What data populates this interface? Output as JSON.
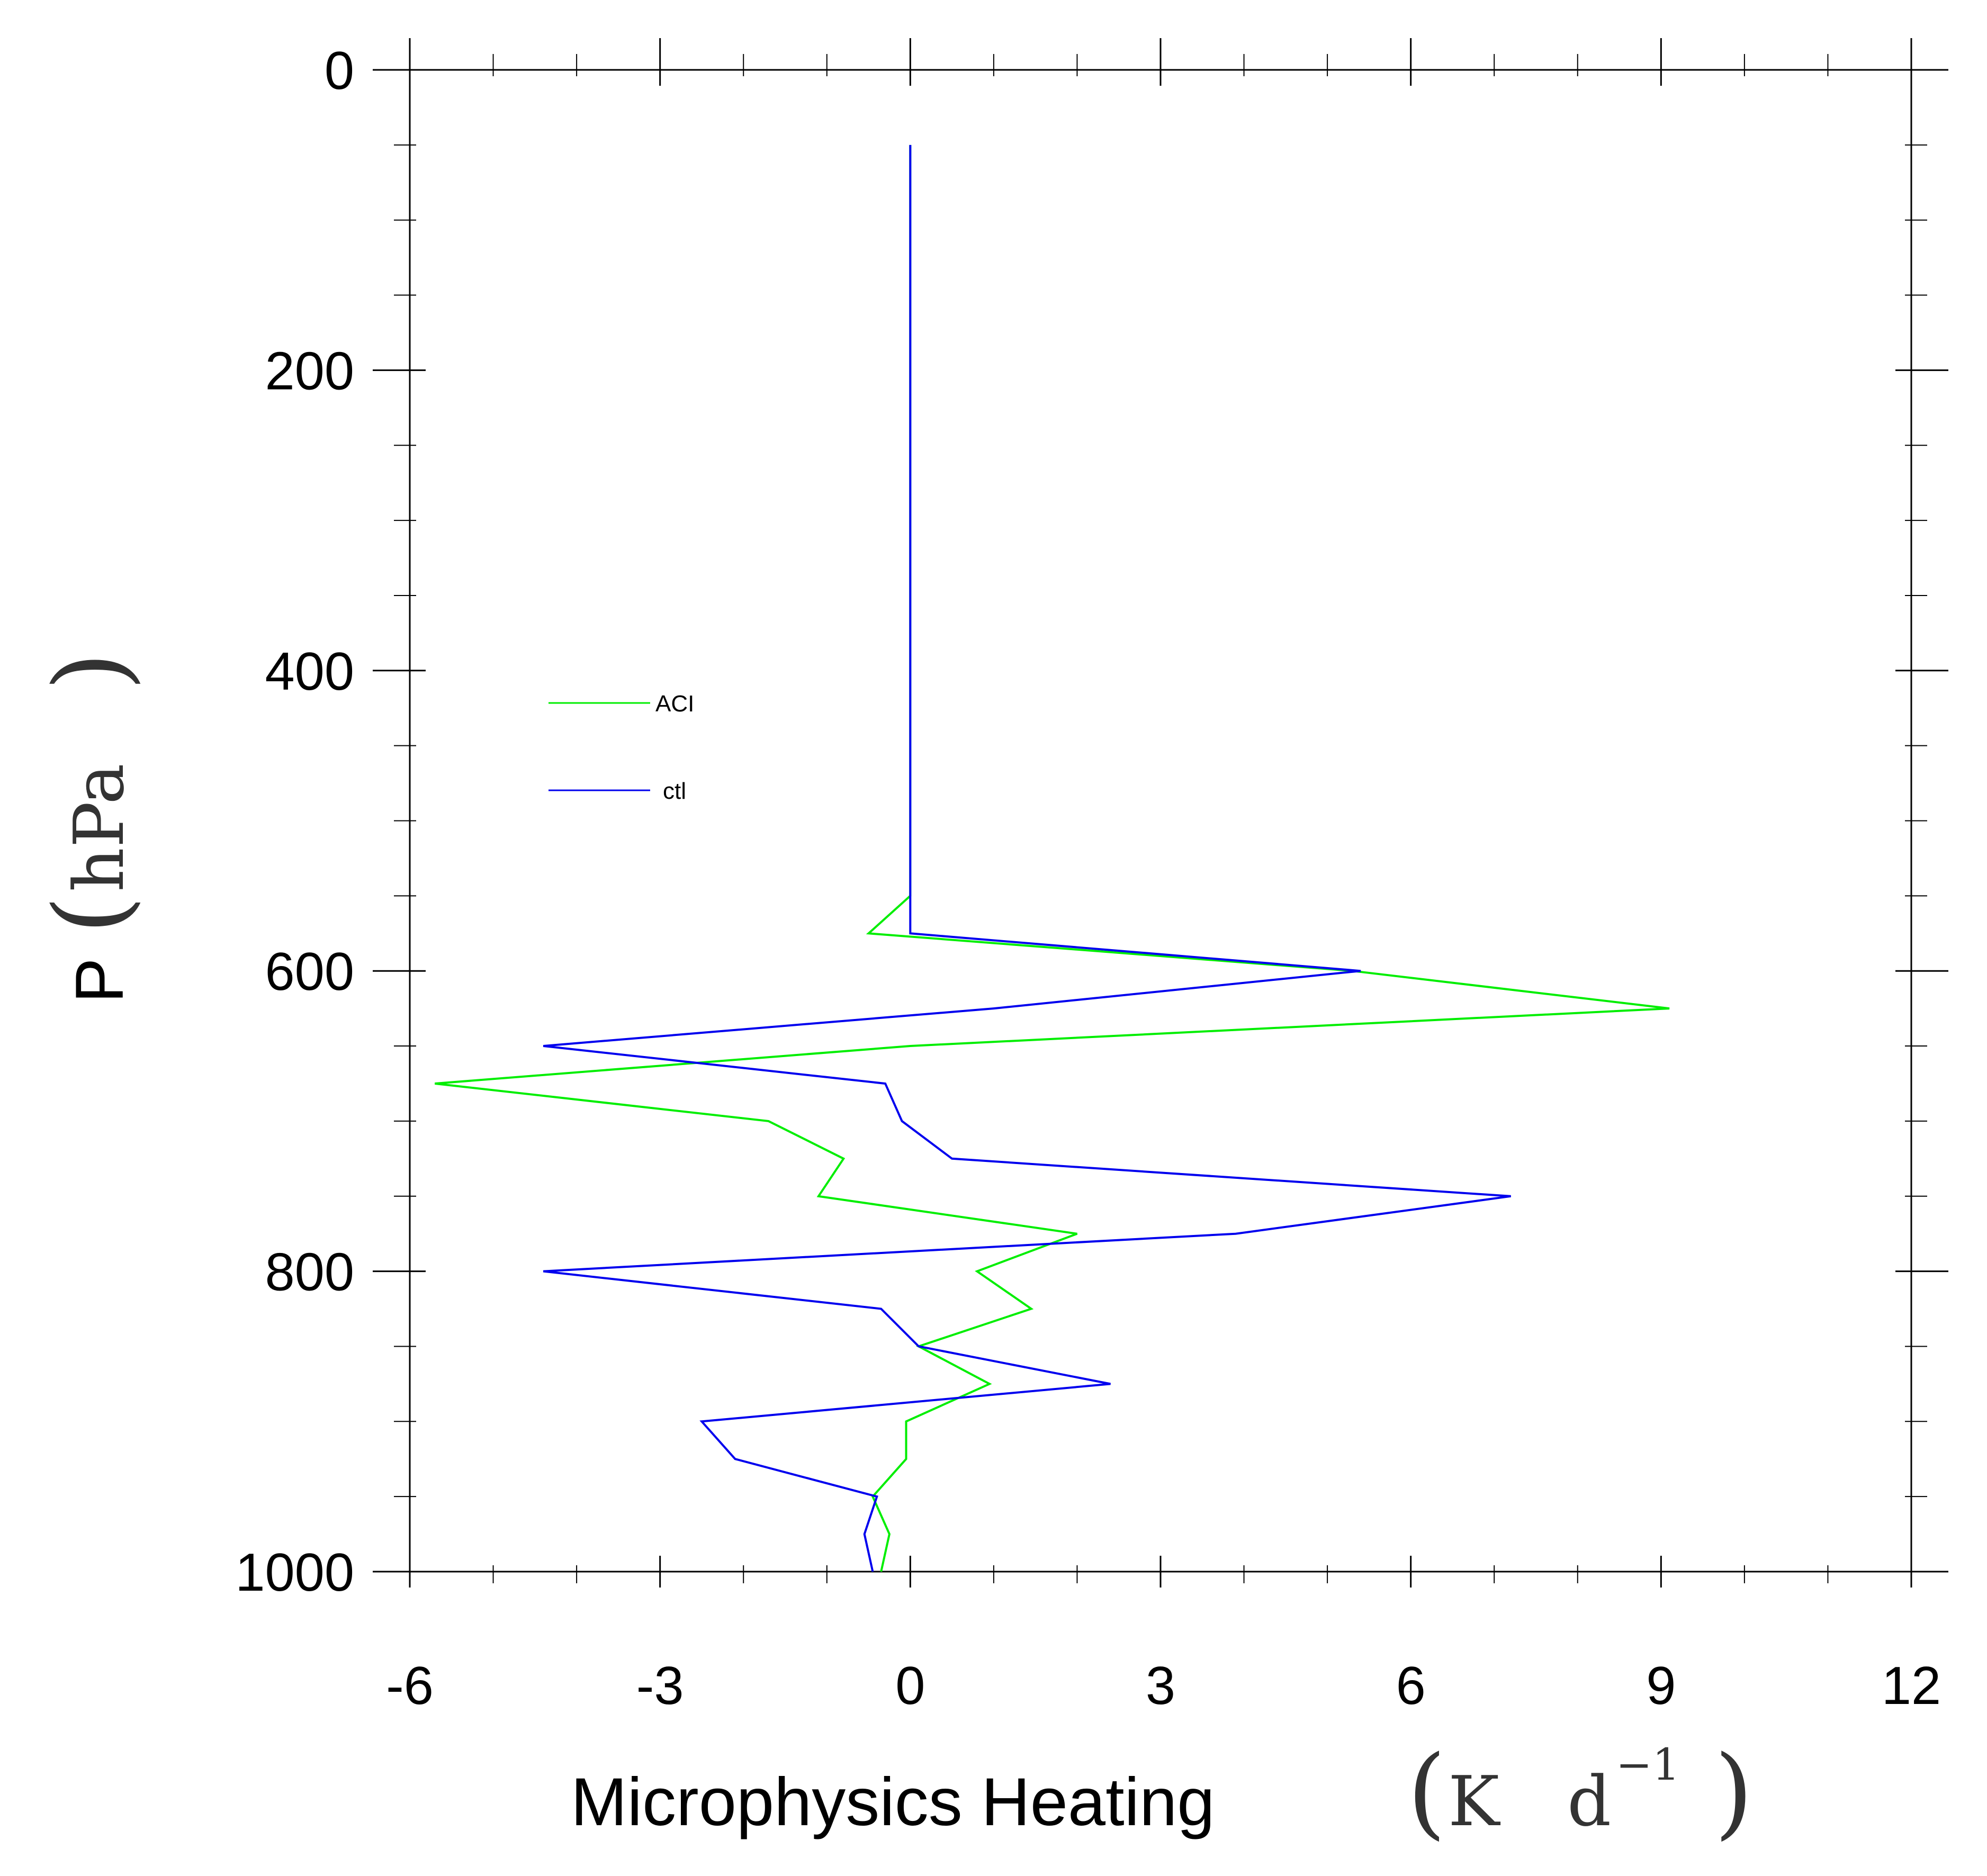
{
  "chart_data": {
    "type": "line",
    "xlabel": "Microphysics Heating",
    "xunit_K": "K",
    "xunit_d": "d",
    "xunit_exp": "−1",
    "ylabel": "P",
    "yunit": "hPa",
    "xlim": [
      -6,
      12
    ],
    "ylim": [
      0,
      1000
    ],
    "y_inverted": true,
    "x_ticks": [
      -6,
      -3,
      0,
      3,
      6,
      9,
      12
    ],
    "x_tick_labels": [
      "-6",
      "-3",
      "0",
      "3",
      "6",
      "9",
      "12"
    ],
    "y_ticks": [
      0,
      200,
      400,
      600,
      800,
      1000
    ],
    "y_tick_labels": [
      "0",
      "200",
      "400",
      "600",
      "800",
      "1000"
    ],
    "legend_position": "left-middle",
    "series": [
      {
        "name": "ACI",
        "color": "#00ee00",
        "points": [
          [
            0,
            50
          ],
          [
            0,
            100
          ],
          [
            0,
            150
          ],
          [
            0,
            200
          ],
          [
            0,
            250
          ],
          [
            0,
            300
          ],
          [
            0,
            350
          ],
          [
            0,
            400
          ],
          [
            0,
            450
          ],
          [
            0,
            500
          ],
          [
            0,
            550
          ],
          [
            -0.5,
            575
          ],
          [
            5.3,
            600
          ],
          [
            9.1,
            625
          ],
          [
            0,
            650
          ],
          [
            -5.7,
            675
          ],
          [
            -1.7,
            700
          ],
          [
            -0.8,
            725
          ],
          [
            -1.1,
            750
          ],
          [
            2.0,
            775
          ],
          [
            0.8,
            800
          ],
          [
            1.45,
            825
          ],
          [
            0.1,
            850
          ],
          [
            0.95,
            875
          ],
          [
            -0.05,
            900
          ],
          [
            -0.05,
            925
          ],
          [
            -0.45,
            950
          ],
          [
            -0.25,
            975
          ],
          [
            -0.35,
            1000
          ]
        ]
      },
      {
        "name": "ctl",
        "color": "#0000ee",
        "points": [
          [
            0,
            50
          ],
          [
            0,
            100
          ],
          [
            0,
            150
          ],
          [
            0,
            200
          ],
          [
            0,
            250
          ],
          [
            0,
            300
          ],
          [
            0,
            350
          ],
          [
            0,
            400
          ],
          [
            0,
            450
          ],
          [
            0,
            500
          ],
          [
            0,
            550
          ],
          [
            0,
            575
          ],
          [
            5.4,
            600
          ],
          [
            1.0,
            625
          ],
          [
            -4.4,
            650
          ],
          [
            -0.3,
            675
          ],
          [
            -0.1,
            700
          ],
          [
            0.5,
            725
          ],
          [
            7.2,
            750
          ],
          [
            3.9,
            775
          ],
          [
            -4.4,
            800
          ],
          [
            -0.35,
            825
          ],
          [
            0.1,
            850
          ],
          [
            2.4,
            875
          ],
          [
            -2.5,
            900
          ],
          [
            -2.1,
            925
          ],
          [
            -0.4,
            950
          ],
          [
            -0.55,
            975
          ],
          [
            -0.45,
            1000
          ]
        ]
      }
    ]
  }
}
